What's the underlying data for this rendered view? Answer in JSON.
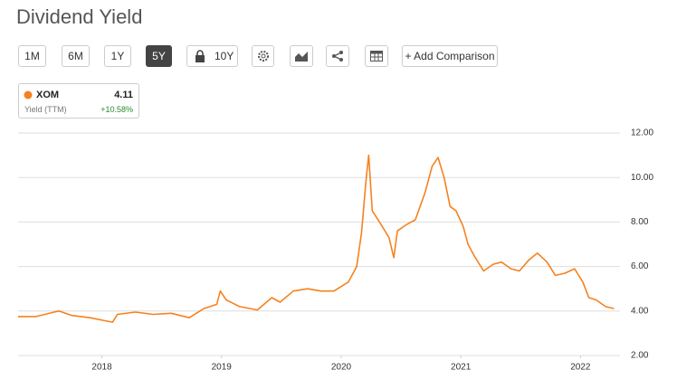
{
  "header": {
    "title": "Dividend Yield"
  },
  "toolbar": {
    "buttons": [
      "1M",
      "6M",
      "1Y",
      "5Y",
      "10Y",
      "+ Add Comparison"
    ]
  },
  "legend": {
    "value": "4.11",
    "label": "Yield (TTM)",
    "change": "+10.58%"
  },
  "chart_data": {
    "type": "line",
    "x": [
      2017.3,
      2017.45,
      2017.6,
      2017.64,
      2017.75,
      2017.9,
      2018.04,
      2018.09,
      2018.13,
      2018.28,
      2018.43,
      2018.58,
      2018.73,
      2018.85,
      2018.96,
      2018.99,
      2019.04,
      2019.15,
      2019.3,
      2019.42,
      2019.49,
      2019.6,
      2019.72,
      2019.83,
      2019.94,
      2020.06,
      2020.13,
      2020.17,
      2020.21,
      2020.23,
      2020.26,
      2020.32,
      2020.4,
      2020.44,
      2020.47,
      2020.55,
      2020.62,
      2020.7,
      2020.76,
      2020.81,
      2020.86,
      2020.91,
      2020.96,
      2021.02,
      2021.06,
      2021.11,
      2021.19,
      2021.27,
      2021.34,
      2021.42,
      2021.49,
      2021.57,
      2021.64,
      2021.72,
      2021.79,
      2021.87,
      2021.95,
      2022.02,
      2022.07,
      2022.13,
      2022.21,
      2022.28
    ],
    "series": [
      {
        "name": "XOM",
        "color": "#f5821f",
        "values": [
          3.75,
          3.75,
          3.95,
          4.0,
          3.8,
          3.7,
          3.55,
          3.5,
          3.85,
          3.95,
          3.85,
          3.9,
          3.7,
          4.1,
          4.3,
          4.9,
          4.5,
          4.2,
          4.05,
          4.6,
          4.4,
          4.9,
          5.0,
          4.9,
          4.9,
          5.3,
          6.0,
          7.5,
          10.0,
          11.0,
          8.5,
          8.0,
          7.3,
          6.4,
          7.6,
          7.9,
          8.1,
          9.3,
          10.5,
          10.9,
          10.0,
          8.7,
          8.5,
          7.8,
          7.0,
          6.5,
          5.8,
          6.1,
          6.2,
          5.9,
          5.8,
          6.3,
          6.6,
          6.2,
          5.6,
          5.7,
          5.9,
          5.3,
          4.6,
          4.5,
          4.2,
          4.11
        ]
      }
    ],
    "xlim": [
      2017.3,
      2022.33
    ],
    "xticks": [
      2018,
      2019,
      2020,
      2021,
      2022
    ],
    "ylim": [
      2,
      12
    ],
    "yticks": [
      {
        "value": 2,
        "label": "2.00"
      },
      {
        "value": 4,
        "label": "4.00"
      },
      {
        "value": 6,
        "label": "6.00"
      },
      {
        "value": 8,
        "label": "8.00"
      },
      {
        "value": 10,
        "label": "10.00"
      },
      {
        "value": 12,
        "label": "12.00"
      }
    ],
    "grid": true
  }
}
